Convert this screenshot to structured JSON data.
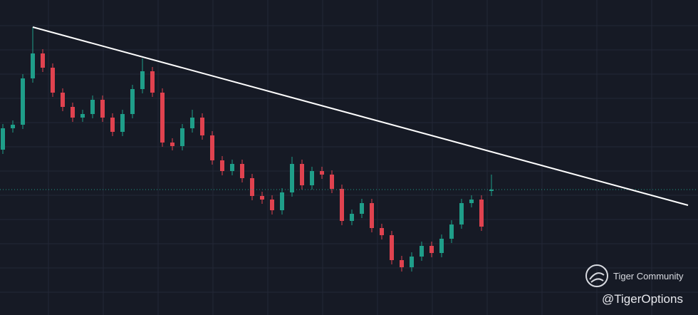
{
  "chart_data": {
    "type": "candlestick",
    "open": [
      232,
      262,
      267,
      332,
      367,
      347,
      312,
      292,
      277,
      282,
      302,
      277,
      257,
      282,
      317,
      342,
      312,
      242,
      237,
      262,
      277,
      252,
      217,
      202,
      212,
      192,
      167,
      162,
      147,
      172,
      212,
      182,
      202,
      197,
      177,
      132,
      142,
      157,
      122,
      112,
      77,
      67,
      82,
      97,
      87,
      107,
      127,
      157,
      162,
      174
    ],
    "high": [
      268,
      273,
      338,
      404,
      373,
      353,
      318,
      298,
      288,
      308,
      308,
      283,
      288,
      323,
      360,
      348,
      318,
      248,
      268,
      288,
      283,
      258,
      223,
      218,
      218,
      198,
      173,
      168,
      178,
      222,
      218,
      208,
      208,
      203,
      183,
      148,
      163,
      163,
      128,
      118,
      83,
      88,
      103,
      103,
      113,
      133,
      163,
      168,
      168,
      197
    ],
    "low": [
      226,
      256,
      261,
      326,
      341,
      306,
      286,
      271,
      271,
      276,
      271,
      251,
      251,
      276,
      311,
      306,
      236,
      231,
      231,
      256,
      246,
      211,
      196,
      196,
      186,
      161,
      156,
      141,
      141,
      166,
      176,
      176,
      191,
      171,
      126,
      126,
      136,
      116,
      106,
      71,
      61,
      61,
      76,
      81,
      81,
      101,
      121,
      151,
      118,
      167
    ],
    "close": [
      262,
      267,
      332,
      367,
      347,
      312,
      292,
      277,
      282,
      302,
      277,
      257,
      282,
      317,
      342,
      312,
      242,
      237,
      262,
      277,
      252,
      217,
      202,
      212,
      192,
      167,
      162,
      147,
      172,
      212,
      182,
      202,
      197,
      177,
      132,
      142,
      157,
      122,
      112,
      77,
      67,
      82,
      97,
      87,
      107,
      127,
      157,
      162,
      124,
      176
    ],
    "up_color": "#1f9e89",
    "down_color": "#e0424f",
    "ylim": [
      0,
      442
    ],
    "trendline": {
      "values": [
        404,
        154
      ],
      "color": "#ffffff"
    },
    "grid": true,
    "watermark": {
      "brand": "Tiger Community",
      "handle": "@TigerOptions"
    }
  }
}
